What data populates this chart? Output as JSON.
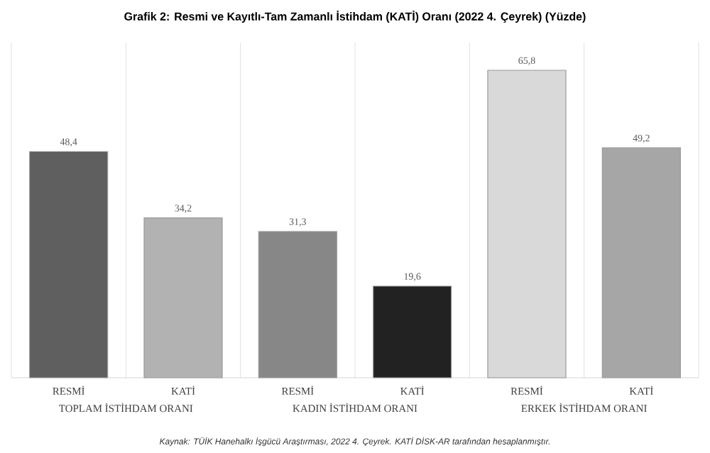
{
  "chart_data": {
    "type": "bar",
    "title": "Grafik 2: Resmi ve Kayıtlı-Tam Zamanlı İstihdam (KATİ) Oranı (2022 4. Çeyrek) (Yüzde)",
    "categories": [
      "RESMİ",
      "KATİ",
      "RESMİ",
      "KATİ",
      "RESMİ",
      "KATİ"
    ],
    "values": [
      48.4,
      34.2,
      31.3,
      19.6,
      65.8,
      49.2
    ],
    "value_labels": [
      "48,4",
      "34,2",
      "31,3",
      "19,6",
      "65,8",
      "49,2"
    ],
    "colors": [
      "#5f5f5f",
      "#b2b2b2",
      "#878787",
      "#222222",
      "#d9d9d9",
      "#a6a6a6"
    ],
    "annotations": [
      "TOPLAM İSTİHDAM ORANI",
      "KADIN İSTİHDAM ORANI",
      "ERKEK İSTİHDAM ORANI",
      "Kaynak: TÜİK Hanehalkı İşgücü Araştırması, 2022 4. Çeyrek. KATİ DİSK-AR tarafından hesaplanmıştır."
    ],
    "grid": "x"
  }
}
